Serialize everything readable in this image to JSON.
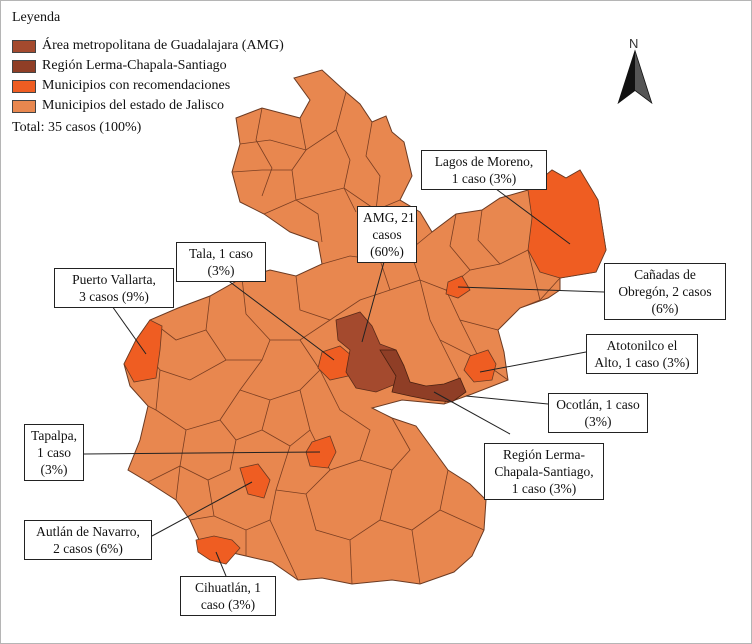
{
  "legend": {
    "title": "Leyenda",
    "items": [
      {
        "label": "Área metropolitana de Guadalajara (AMG)",
        "color": "#a44a2e"
      },
      {
        "label": "Región Lerma-Chapala-Santiago",
        "color": "#8f3e26"
      },
      {
        "label": "Municipios con recomendaciones",
        "color": "#ef5d22"
      },
      {
        "label": "Municipios del  estado de Jalisco",
        "color": "#e8874f"
      }
    ],
    "total": "Total: 35 casos (100%)"
  },
  "north_label": "N",
  "callouts": {
    "lagos": {
      "line1": "Lagos de Moreno,",
      "line2": "1 caso (3%)",
      "line3": ""
    },
    "amg": {
      "line1": "AMG, 21",
      "line2": "casos",
      "line3": "(60%)"
    },
    "tala": {
      "line1": "Tala, 1 caso",
      "line2": "(3%)",
      "line3": ""
    },
    "vallarta": {
      "line1": "Puerto Vallarta,",
      "line2": "3 casos (9%)",
      "line3": ""
    },
    "canadas": {
      "line1": "Cañadas de",
      "line2": "Obregón, 2 casos",
      "line3": "(6%)"
    },
    "atotonilco": {
      "line1": "Atotonilco el",
      "line2": "Alto, 1 caso (3%)",
      "line3": ""
    },
    "ocotlan": {
      "line1": "Ocotlán, 1 caso",
      "line2": "(3%)",
      "line3": ""
    },
    "tapalpa": {
      "line1": "Tapalpa,",
      "line2": "1 caso",
      "line3": "(3%)"
    },
    "lerma": {
      "line1": "Región Lerma-",
      "line2": "Chapala-Santiago,",
      "line3": "1 caso (3%)"
    },
    "autlan": {
      "line1": "Autlán de Navarro,",
      "line2": "2 casos (6%)",
      "line3": ""
    },
    "cihuatlan": {
      "line1": "Cihuatlán, 1",
      "line2": "caso (3%)",
      "line3": ""
    }
  }
}
